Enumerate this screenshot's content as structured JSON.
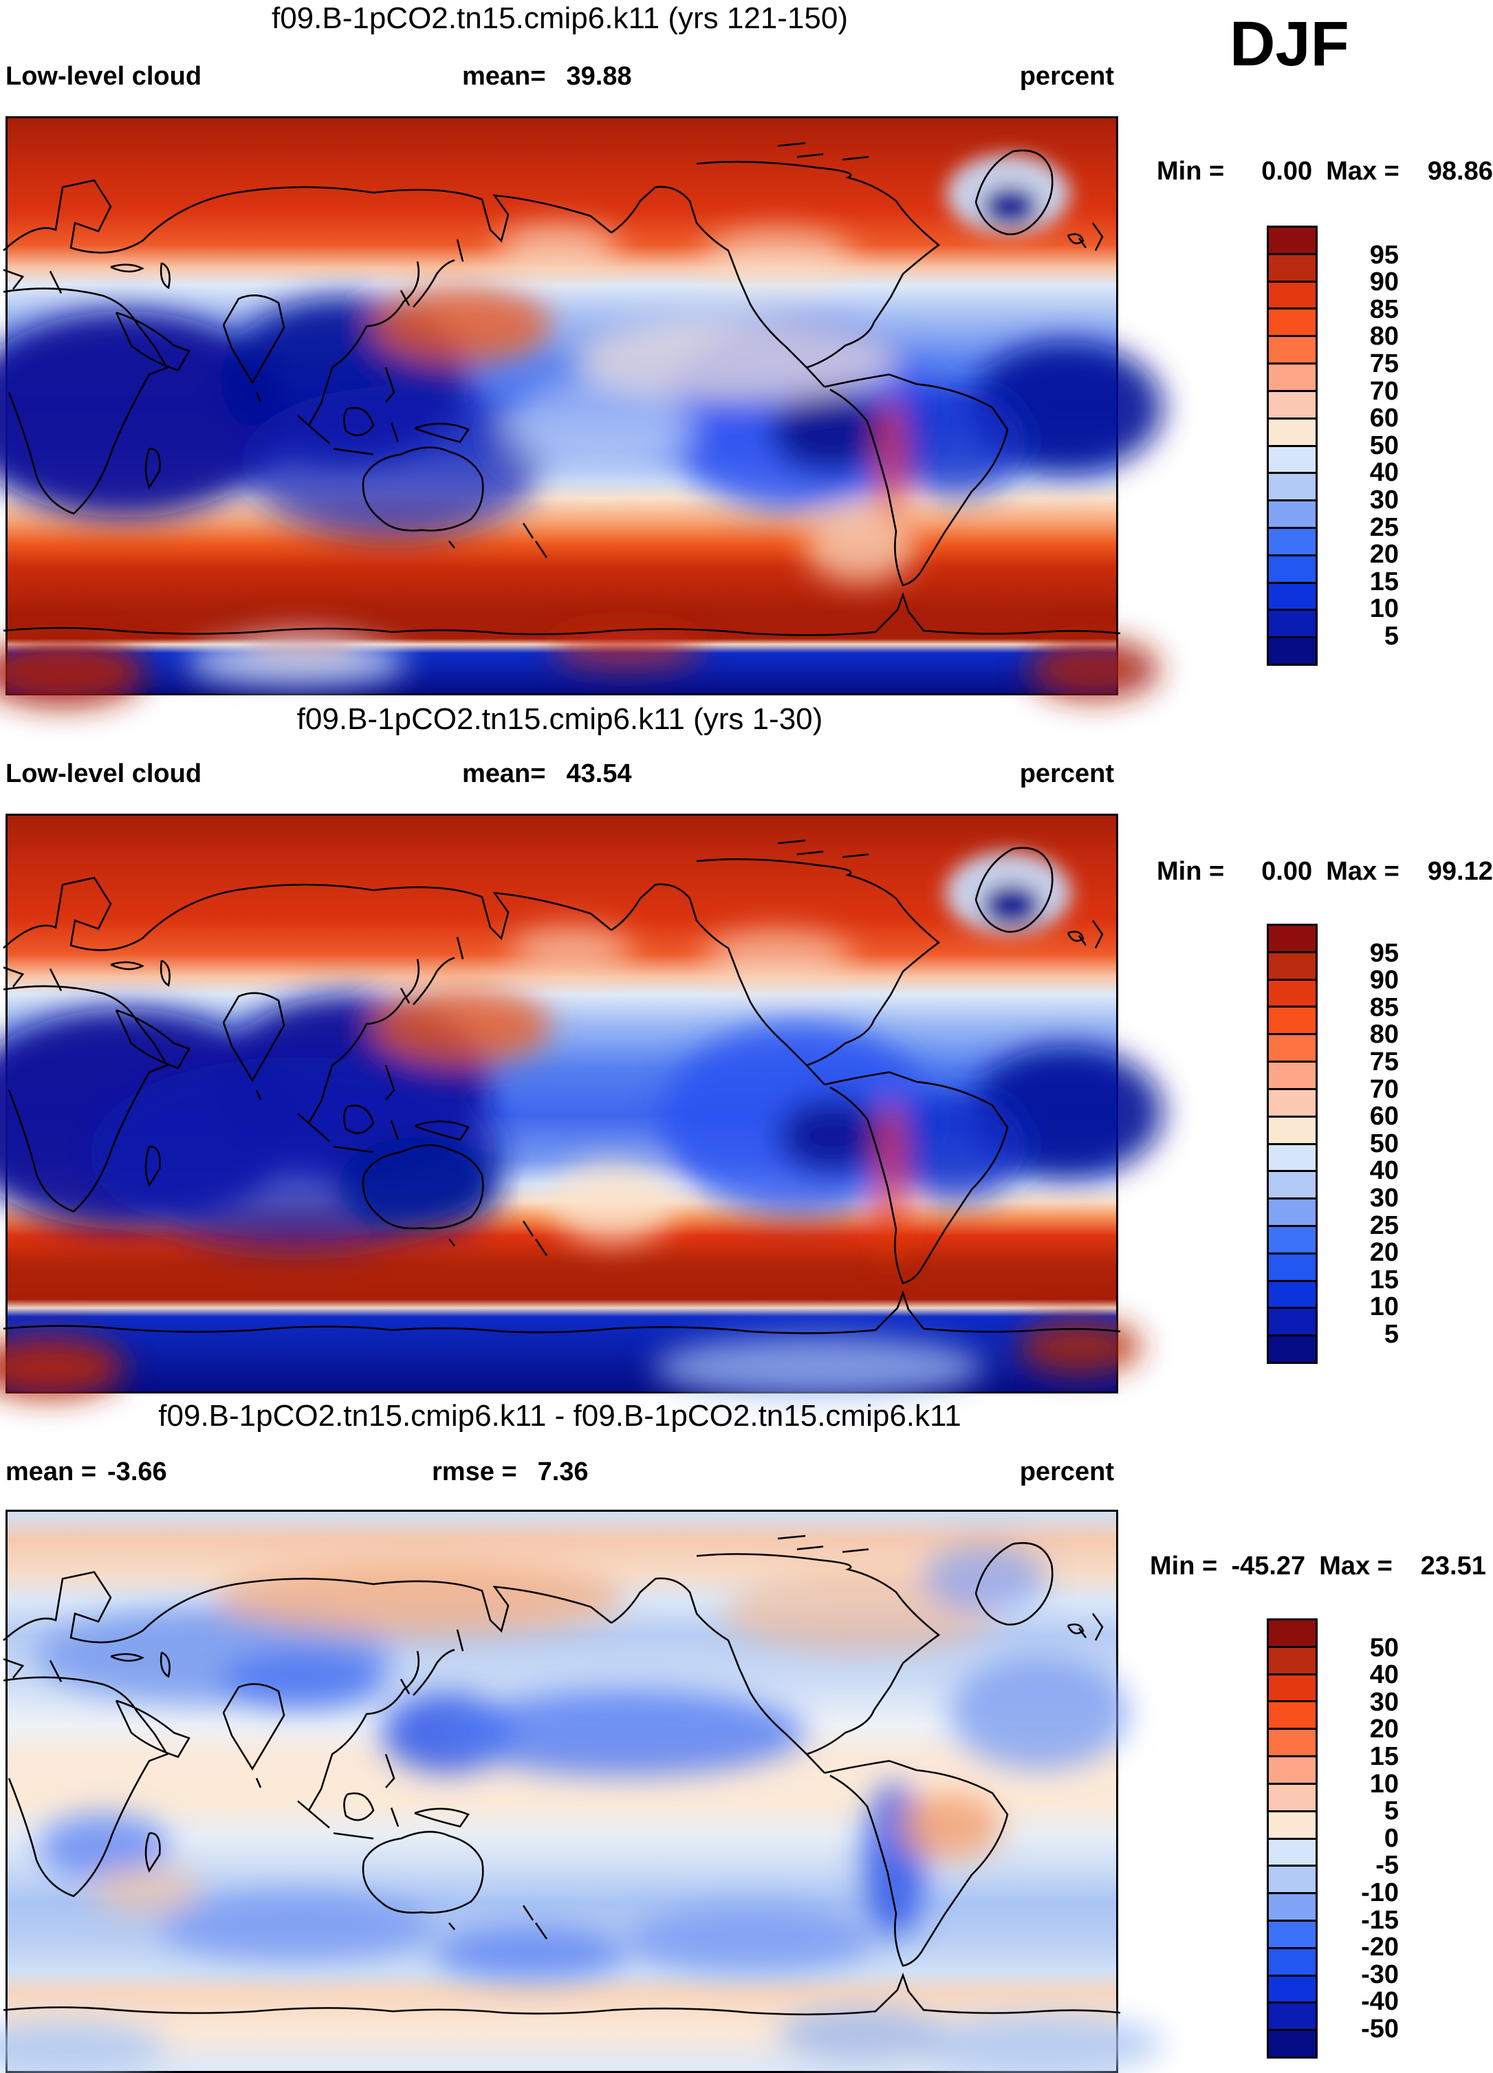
{
  "season_label": "DJF",
  "figure": {
    "variable": "Low-level cloud",
    "units": "percent",
    "projection": "global cylindrical equidistant"
  },
  "palette": [
    "#8f0f0e",
    "#ba2b10",
    "#e33911",
    "#f8511c",
    "#fe7342",
    "#fca687",
    "#fcc9b2",
    "#fde8d4",
    "#d6e6fa",
    "#b1caf6",
    "#81a4f6",
    "#3b72f8",
    "#2257f2",
    "#0d33dd",
    "#0a1cb4",
    "#060c86"
  ],
  "panels": [
    {
      "title": "f09.B-1pCO2.tn15.cmip6.k11 (yrs 121-150)",
      "sub_left_label": "Low-level cloud",
      "sub_left_value": "",
      "sub_mid_label": "mean=",
      "sub_mid_value": "39.88",
      "unit": "percent",
      "min_label": "Min =",
      "min_value": "0.00",
      "max_label": "Max =",
      "max_value": "98.86",
      "colorbar_ticks": [
        "95",
        "90",
        "85",
        "80",
        "75",
        "70",
        "60",
        "50",
        "40",
        "30",
        "25",
        "20",
        "15",
        "10",
        "5"
      ]
    },
    {
      "title": "f09.B-1pCO2.tn15.cmip6.k11 (yrs 1-30)",
      "sub_left_label": "Low-level cloud",
      "sub_left_value": "",
      "sub_mid_label": "mean=",
      "sub_mid_value": "43.54",
      "unit": "percent",
      "min_label": "Min =",
      "min_value": "0.00",
      "max_label": "Max =",
      "max_value": "99.12",
      "colorbar_ticks": [
        "95",
        "90",
        "85",
        "80",
        "75",
        "70",
        "60",
        "50",
        "40",
        "30",
        "25",
        "20",
        "15",
        "10",
        "5"
      ]
    },
    {
      "title": "f09.B-1pCO2.tn15.cmip6.k11 - f09.B-1pCO2.tn15.cmip6.k11",
      "sub_left_label": "mean =",
      "sub_left_value": "-3.66",
      "sub_mid_label": "rmse =",
      "sub_mid_value": "7.36",
      "unit": "percent",
      "min_label": "Min =",
      "min_value": "-45.27",
      "max_label": "Max =",
      "max_value": "23.51",
      "colorbar_ticks": [
        "50",
        "40",
        "30",
        "20",
        "15",
        "10",
        "5",
        "0",
        "-5",
        "-10",
        "-15",
        "-20",
        "-30",
        "-40",
        "-50"
      ]
    }
  ],
  "chart_data": [
    {
      "type": "heatmap",
      "subtype": "filled-contour world map",
      "title": "f09.B-1pCO2.tn15.cmip6.k11 (yrs 121-150)",
      "variable": "Low-level cloud",
      "season": "DJF",
      "units": "percent",
      "mean": 39.88,
      "min": 0.0,
      "max": 98.86,
      "contour_levels": [
        5,
        10,
        15,
        20,
        25,
        30,
        40,
        50,
        60,
        70,
        75,
        80,
        85,
        90,
        95
      ],
      "legend_position": "right",
      "notes": "High cloud fraction (dark red) over Arctic and Southern Ocean storm track; low fraction (dark blue) over subtropics, Africa, South Asia, eastern Pacific and Antarctica interior"
    },
    {
      "type": "heatmap",
      "subtype": "filled-contour world map",
      "title": "f09.B-1pCO2.tn15.cmip6.k11 (yrs 1-30)",
      "variable": "Low-level cloud",
      "season": "DJF",
      "units": "percent",
      "mean": 43.54,
      "min": 0.0,
      "max": 99.12,
      "contour_levels": [
        5,
        10,
        15,
        20,
        25,
        30,
        40,
        50,
        60,
        70,
        75,
        80,
        85,
        90,
        95
      ],
      "legend_position": "right",
      "notes": "Same field for years 1-30; blues over tropics/subtropics more extensive, Australia and Indian Ocean darker blue"
    },
    {
      "type": "heatmap",
      "subtype": "filled-contour world map (difference)",
      "title": "f09.B-1pCO2.tn15.cmip6.k11 - f09.B-1pCO2.tn15.cmip6.k11",
      "variable": "Low-level cloud difference",
      "season": "DJF",
      "units": "percent",
      "mean": -3.66,
      "rmse": 7.36,
      "min": -45.27,
      "max": 23.51,
      "contour_levels": [
        -50,
        -40,
        -30,
        -20,
        -15,
        -10,
        -5,
        0,
        5,
        10,
        15,
        20,
        30,
        40,
        50
      ],
      "legend_position": "right",
      "notes": "Mostly weak negative (pale blue) differences; strong negative band across mid-latitude Eurasia and NW Pacific and along the Andes; weak positive (peach) over Arctic Siberia and parts of tropics"
    }
  ]
}
